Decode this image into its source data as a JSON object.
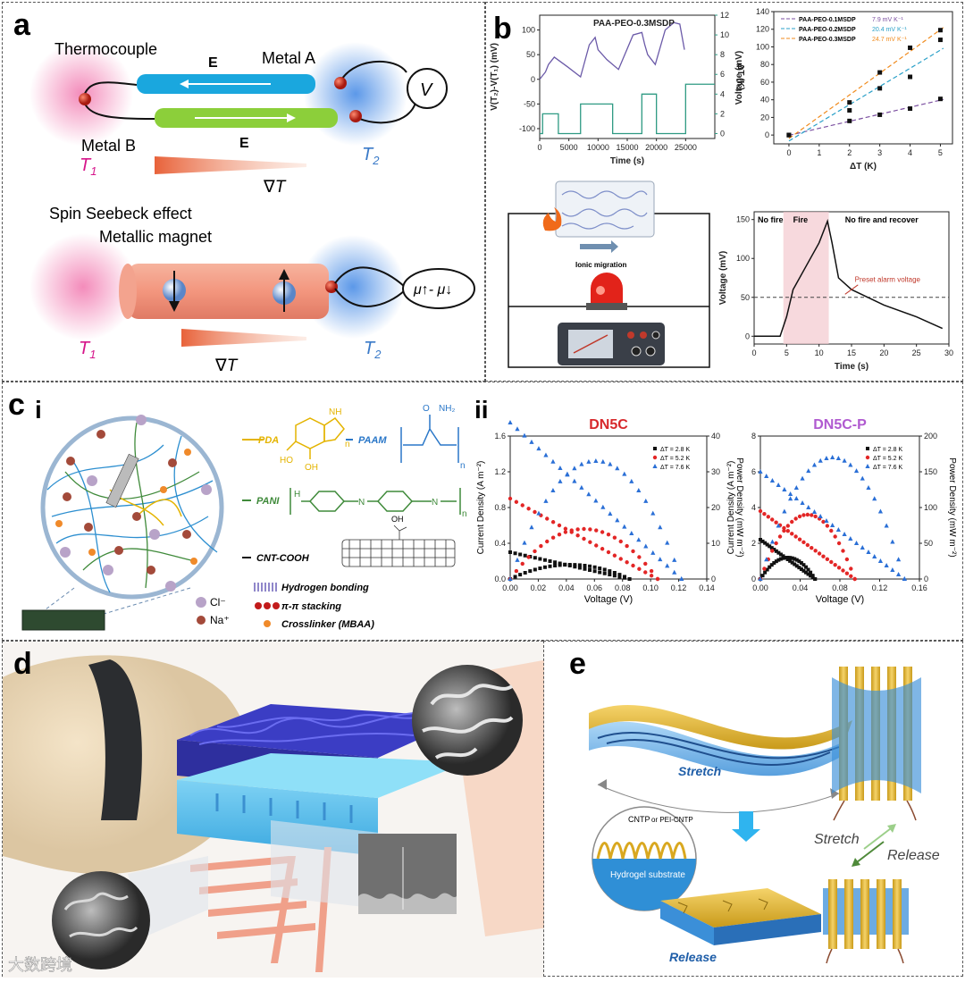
{
  "colors": {
    "blue_bar": "#1aa7de",
    "green_bar": "#8ccf3a",
    "red": "#e0401c",
    "magenta": "#d6158a",
    "blue_text": "#3a7ac8",
    "purple": "#7b4fa0",
    "teal": "#2e9a83",
    "pda": "#e4b400",
    "paam": "#2a77c8",
    "pani": "#3f8a3a"
  },
  "panel_a": {
    "label": "a",
    "thermocouple": "Thermocouple",
    "metal_a": "Metal A",
    "metal_b": "Metal B",
    "e": "E",
    "t1": "T",
    "t1_sub": "1",
    "t2": "T",
    "t2_sub": "2",
    "grad": "∇T",
    "v": "V",
    "spin_seebeck": "Spin Seebeck effect",
    "metallic_magnet": "Metallic magnet",
    "mu": "μ↑- μ↓"
  },
  "panel_b": {
    "label": "b",
    "chart_data": [
      {
        "type": "line",
        "title": "PAA-PEO-0.3MSDP",
        "xlabel": "Time (s)",
        "ylabel_left": "V(T₂)-V(T₁) (mV)",
        "ylabel_right": "ΔT (K)",
        "xlim": [
          0,
          30000
        ],
        "ylim_left": [
          -120,
          130
        ],
        "ylim_right": [
          -0.5,
          12
        ],
        "x_ticks": [
          0,
          5000,
          10000,
          15000,
          20000,
          25000
        ],
        "yl_ticks": [
          -100,
          -50,
          0,
          50,
          100
        ],
        "yr_ticks": [
          0,
          2,
          4,
          6,
          8,
          10,
          12
        ],
        "voltage": {
          "x": [
            0,
            1000,
            1500,
            2500,
            4800,
            7000,
            8500,
            9500,
            10000,
            11500,
            13500,
            16000,
            17500,
            18000,
            18500,
            19800,
            21500,
            23000,
            24000,
            24800
          ],
          "y": [
            0,
            15,
            30,
            45,
            25,
            5,
            70,
            85,
            60,
            40,
            20,
            90,
            95,
            70,
            50,
            30,
            100,
            115,
            112,
            60
          ]
        },
        "delta_t": {
          "x": [
            0,
            500,
            2700,
            3200,
            5500,
            7000,
            11500,
            12500,
            13500,
            17500,
            18500,
            20000,
            25000
          ],
          "y": [
            0,
            2,
            2,
            0,
            0,
            3,
            3,
            0,
            0,
            4,
            4,
            0,
            5
          ]
        }
      },
      {
        "type": "scatter",
        "xlabel": "ΔT (K)",
        "ylabel": "Voltage (mV)",
        "xlim": [
          0,
          5
        ],
        "ylim": [
          -10,
          140
        ],
        "x_ticks": [
          0,
          1,
          2,
          3,
          4,
          5
        ],
        "y_ticks": [
          0,
          20,
          40,
          60,
          80,
          100,
          120,
          140
        ],
        "series": [
          {
            "name": "PAA-PEO-0.1MSDP",
            "slope_label": "7.9 mV K⁻¹",
            "x": [
              0,
              2,
              3,
              4,
              5
            ],
            "y": [
              0,
              16,
              23,
              30,
              41
            ],
            "color": "#7b4fa0"
          },
          {
            "name": "PAA-PEO-0.2MSDP",
            "slope_label": "20.4 mV K⁻¹",
            "x": [
              0,
              2,
              3,
              4,
              5
            ],
            "y": [
              0,
              28,
              53,
              66,
              108
            ],
            "color": "#2aa0c8"
          },
          {
            "name": "PAA-PEO-0.3MSDP",
            "slope_label": "24.7 mV K⁻¹",
            "x": [
              0,
              2,
              3,
              4,
              5
            ],
            "y": [
              0,
              37,
              71,
              99,
              119
            ],
            "color": "#f08a1c"
          }
        ]
      },
      {
        "type": "line",
        "xlabel": "Time (s)",
        "ylabel": "Voltage (mV)",
        "xlim": [
          0,
          30
        ],
        "ylim": [
          -10,
          160
        ],
        "x_ticks": [
          0,
          5,
          10,
          15,
          20,
          25,
          30
        ],
        "y_ticks": [
          0,
          50,
          100,
          150
        ],
        "x": [
          0,
          4,
          5,
          6,
          8,
          10,
          11.3,
          12,
          13,
          15,
          20,
          25,
          29
        ],
        "y": [
          0,
          0,
          25,
          60,
          90,
          120,
          148,
          120,
          75,
          60,
          40,
          25,
          10
        ],
        "alarm_level": 50,
        "alarm_label": "Preset alarm voltage",
        "fire_range": [
          4.5,
          11.5
        ],
        "phases": [
          "No fire",
          "Fire",
          "No fire and recover"
        ]
      }
    ],
    "ionic_migration": "Ionic migration"
  },
  "panel_c": {
    "label": "c",
    "sub_i": "i",
    "sub_ii": "ii",
    "pda": "PDA",
    "paam": "PAAM",
    "pani": "PANI",
    "cnt": "CNT-COOH",
    "nh": "NH",
    "nh2": "NH₂",
    "o": "O",
    "ho": "HO",
    "oh": "OH",
    "n": "n",
    "h": "H",
    "nh_": "N",
    "legend": {
      "hbond": "Hydrogen bonding",
      "pipi": "π-π stacking",
      "crosslinker": "Crosslinker (MBAA)",
      "cl": "Cl⁻",
      "na": "Na⁺"
    },
    "chart_data": [
      {
        "type": "scatter",
        "title": "DN5C",
        "title_color": "#d7282b",
        "xlabel": "Voltage (V)",
        "ylabel_left": "Current Density (A m⁻²)",
        "ylabel_right": "Power Density (mW m⁻²)",
        "xlim": [
          0,
          0.14
        ],
        "ylim_left": [
          0,
          1.6
        ],
        "ylim_right": [
          0,
          40
        ],
        "x_ticks": [
          0.0,
          0.02,
          0.04,
          0.06,
          0.08,
          0.1,
          0.12,
          0.14
        ],
        "yl_ticks": [
          0.0,
          0.4,
          0.8,
          1.2,
          1.6
        ],
        "yr_ticks": [
          0,
          10,
          20,
          30,
          40
        ],
        "series": [
          {
            "name": "ΔT = 2.8 K",
            "color": "#111111",
            "marker": "square",
            "v_max": 0.085,
            "i0": 0.3,
            "pmax": 4
          },
          {
            "name": "ΔT = 5.2 K",
            "color": "#e32626",
            "marker": "circle",
            "v_max": 0.105,
            "i0": 0.9,
            "pmax": 14
          },
          {
            "name": "ΔT = 7.6 K",
            "color": "#2a6fd6",
            "marker": "triangle",
            "v_max": 0.122,
            "i0": 1.75,
            "pmax": 33
          }
        ]
      },
      {
        "type": "scatter",
        "title": "DN5C-P",
        "title_color": "#b05ad0",
        "xlabel": "Voltage (V)",
        "ylabel_left": "Current Density (A m⁻²)",
        "ylabel_right": "Power Density (mW m⁻²)",
        "xlim": [
          0,
          0.16
        ],
        "ylim_left": [
          0,
          8
        ],
        "ylim_right": [
          0,
          200
        ],
        "x_ticks": [
          0.0,
          0.04,
          0.08,
          0.12,
          0.16
        ],
        "yl_ticks": [
          0,
          2,
          4,
          6,
          8
        ],
        "yr_ticks": [
          0,
          50,
          100,
          150,
          200
        ],
        "series": [
          {
            "name": "ΔT = 2.8 K",
            "color": "#111111",
            "marker": "square",
            "v_max": 0.055,
            "i0": 2.2,
            "pmax": 30
          },
          {
            "name": "ΔT = 5.2 K",
            "color": "#e32626",
            "marker": "circle",
            "v_max": 0.095,
            "i0": 3.8,
            "pmax": 90
          },
          {
            "name": "ΔT = 7.6 K",
            "color": "#2a6fd6",
            "marker": "triangle",
            "v_max": 0.145,
            "i0": 6.0,
            "pmax": 170
          }
        ]
      }
    ]
  },
  "panel_d": {
    "label": "d",
    "watermark": "大数跨境"
  },
  "panel_e": {
    "label": "e",
    "stretch": "Stretch",
    "release": "Release",
    "cntp": "CNTP",
    "or_pei": "or PEI-CNTP",
    "hydrogel": "Hydrogel substrate"
  }
}
